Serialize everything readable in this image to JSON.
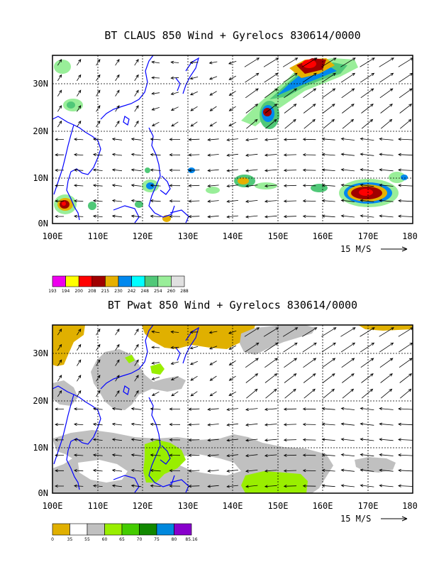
{
  "panels": [
    {
      "title": "BT CLAUS 850 Wind + Gyrelocs 830614/0000",
      "lon_labels": [
        "100E",
        "110E",
        "120E",
        "130E",
        "140E",
        "150E",
        "160E",
        "170E",
        "180"
      ],
      "lat_labels": [
        "0N",
        "10N",
        "20N",
        "30N"
      ],
      "vector_ref": "15 M/S",
      "colorbar": {
        "labels": [
          "193",
          "194",
          "200",
          "208",
          "215",
          "230",
          "242",
          "248",
          "254",
          "260",
          "288"
        ],
        "colors": [
          "#ee00ee",
          "#ffff00",
          "#ff0000",
          "#a00000",
          "#e6b000",
          "#0088ee",
          "#00ffff",
          "#50c878",
          "#99ee99",
          "#e0e0e0"
        ]
      }
    },
    {
      "title": "BT Pwat 850 Wind + Gyrelocs 830614/0000",
      "lon_labels": [
        "100E",
        "110E",
        "120E",
        "130E",
        "140E",
        "150E",
        "160E",
        "170E",
        "180"
      ],
      "lat_labels": [
        "0N",
        "10N",
        "20N",
        "30N"
      ],
      "vector_ref": "15 M/S",
      "colorbar": {
        "labels": [
          "0",
          "35",
          "55",
          "60",
          "65",
          "70",
          "75",
          "80",
          "85.16"
        ],
        "colors": [
          "#e0b000",
          "#ffffff",
          "#c0c0c0",
          "#99ee00",
          "#44cc00",
          "#118800",
          "#0088dd",
          "#8800cc"
        ]
      }
    }
  ],
  "colors": {
    "coastline": "#0000ff",
    "frame": "#000000",
    "grid": "#000000",
    "arrow": "#000000"
  }
}
